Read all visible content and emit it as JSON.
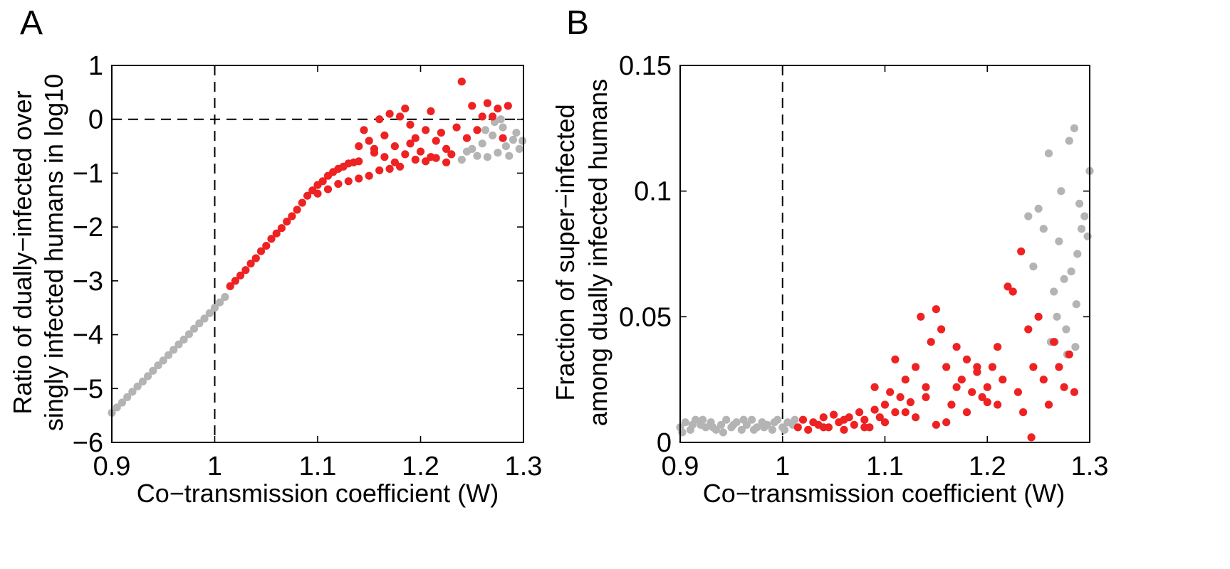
{
  "colors": {
    "red": "#ee2222",
    "gray": "#b4b4b4",
    "axis": "#000000"
  },
  "chart_data": [
    {
      "type": "scatter",
      "panel_label": "A",
      "xlabel": "Co−transmission coefficient (W)",
      "ylabel_line1": "Ratio of dually−infected over",
      "ylabel_line2": "singly infected humans in log10",
      "xlim": [
        0.9,
        1.3
      ],
      "ylim": [
        -6,
        1
      ],
      "xticks": [
        0.9,
        1.0,
        1.1,
        1.2,
        1.3
      ],
      "xtick_labels": [
        "0.9",
        "1",
        "1.1",
        "1.2",
        "1.3"
      ],
      "yticks": [
        1,
        0,
        -1,
        -2,
        -3,
        -4,
        -5,
        -6
      ],
      "ytick_labels": [
        "1",
        "0",
        "−1",
        "−2",
        "−3",
        "−4",
        "−5",
        "−6"
      ],
      "reference_lines": {
        "vertical_x": 1.0,
        "horizontal_y": 0
      },
      "series": [
        {
          "color_key": "gray",
          "points": [
            [
              0.9,
              -5.45
            ],
            [
              0.905,
              -5.35
            ],
            [
              0.91,
              -5.26
            ],
            [
              0.915,
              -5.16
            ],
            [
              0.92,
              -5.06
            ],
            [
              0.925,
              -4.96
            ],
            [
              0.93,
              -4.87
            ],
            [
              0.935,
              -4.77
            ],
            [
              0.94,
              -4.67
            ],
            [
              0.945,
              -4.57
            ],
            [
              0.95,
              -4.48
            ],
            [
              0.955,
              -4.38
            ],
            [
              0.96,
              -4.28
            ],
            [
              0.965,
              -4.18
            ],
            [
              0.97,
              -4.09
            ],
            [
              0.975,
              -3.99
            ],
            [
              0.98,
              -3.89
            ],
            [
              0.985,
              -3.79
            ],
            [
              0.99,
              -3.7
            ],
            [
              0.995,
              -3.6
            ],
            [
              1.0,
              -3.5
            ],
            [
              1.005,
              -3.4
            ],
            [
              1.01,
              -3.3
            ],
            [
              1.24,
              -0.75
            ],
            [
              1.245,
              -0.6
            ],
            [
              1.25,
              -0.55
            ],
            [
              1.255,
              -0.68
            ],
            [
              1.26,
              -0.45
            ],
            [
              1.265,
              -0.7
            ],
            [
              1.27,
              -0.3
            ],
            [
              1.275,
              -0.62
            ],
            [
              1.28,
              -0.15
            ],
            [
              1.283,
              -0.5
            ],
            [
              1.286,
              -0.68
            ],
            [
              1.29,
              -0.38
            ],
            [
              1.293,
              -0.25
            ],
            [
              1.296,
              -0.55
            ],
            [
              1.299,
              -0.4
            ],
            [
              1.272,
              -0.05
            ],
            [
              1.278,
              0.0
            ],
            [
              1.263,
              -0.2
            ]
          ]
        },
        {
          "color_key": "red",
          "points": [
            [
              1.015,
              -3.1
            ],
            [
              1.02,
              -3.0
            ],
            [
              1.025,
              -2.9
            ],
            [
              1.03,
              -2.8
            ],
            [
              1.035,
              -2.68
            ],
            [
              1.04,
              -2.58
            ],
            [
              1.045,
              -2.45
            ],
            [
              1.05,
              -2.35
            ],
            [
              1.055,
              -2.22
            ],
            [
              1.06,
              -2.12
            ],
            [
              1.065,
              -2.02
            ],
            [
              1.07,
              -1.9
            ],
            [
              1.075,
              -1.8
            ],
            [
              1.08,
              -1.68
            ],
            [
              1.085,
              -1.55
            ],
            [
              1.09,
              -1.42
            ],
            [
              1.095,
              -1.32
            ],
            [
              1.1,
              -1.22
            ],
            [
              1.105,
              -1.15
            ],
            [
              1.11,
              -1.05
            ],
            [
              1.115,
              -0.98
            ],
            [
              1.12,
              -0.92
            ],
            [
              1.125,
              -0.88
            ],
            [
              1.13,
              -0.82
            ],
            [
              1.135,
              -0.8
            ],
            [
              1.14,
              -0.78
            ],
            [
              1.1,
              -1.38
            ],
            [
              1.11,
              -1.3
            ],
            [
              1.12,
              -1.2
            ],
            [
              1.13,
              -1.15
            ],
            [
              1.14,
              -1.1
            ],
            [
              1.15,
              -1.05
            ],
            [
              1.16,
              -0.95
            ],
            [
              1.17,
              -0.92
            ],
            [
              1.18,
              -0.88
            ],
            [
              1.145,
              -0.2
            ],
            [
              1.15,
              -0.4
            ],
            [
              1.155,
              -0.55
            ],
            [
              1.16,
              0.0
            ],
            [
              1.165,
              -0.3
            ],
            [
              1.17,
              0.1
            ],
            [
              1.175,
              -0.5
            ],
            [
              1.18,
              0.05
            ],
            [
              1.185,
              0.2
            ],
            [
              1.19,
              -0.1
            ],
            [
              1.195,
              -0.35
            ],
            [
              1.2,
              -0.6
            ],
            [
              1.205,
              -0.2
            ],
            [
              1.21,
              -0.7
            ],
            [
              1.215,
              -0.4
            ],
            [
              1.22,
              -0.25
            ],
            [
              1.225,
              -0.55
            ],
            [
              1.23,
              -0.65
            ],
            [
              1.235,
              -0.15
            ],
            [
              1.24,
              0.7
            ],
            [
              1.245,
              -0.35
            ],
            [
              1.25,
              0.25
            ],
            [
              1.255,
              -0.2
            ],
            [
              1.26,
              0.05
            ],
            [
              1.265,
              0.3
            ],
            [
              1.27,
              0.05
            ],
            [
              1.275,
              0.2
            ],
            [
              1.28,
              -0.35
            ],
            [
              1.285,
              0.25
            ],
            [
              1.165,
              -0.7
            ],
            [
              1.175,
              -0.8
            ],
            [
              1.185,
              -0.65
            ],
            [
              1.195,
              -0.75
            ],
            [
              1.205,
              -0.78
            ],
            [
              1.215,
              -0.72
            ],
            [
              1.225,
              -0.8
            ],
            [
              1.155,
              -0.62
            ],
            [
              1.14,
              -0.5
            ],
            [
              1.21,
              0.15
            ],
            [
              1.19,
              -0.45
            ]
          ]
        }
      ]
    },
    {
      "type": "scatter",
      "panel_label": "B",
      "xlabel": "Co−transmission coefficient (W)",
      "ylabel_line1": "Fraction of super−infected",
      "ylabel_line2": "among dually infected humans",
      "xlim": [
        0.9,
        1.3
      ],
      "ylim": [
        0,
        0.15
      ],
      "xticks": [
        0.9,
        1.0,
        1.1,
        1.2,
        1.3
      ],
      "xtick_labels": [
        "0.9",
        "1",
        "1.1",
        "1.2",
        "1.3"
      ],
      "yticks": [
        0,
        0.05,
        0.1,
        0.15
      ],
      "ytick_labels": [
        "0",
        "0.05",
        "0.1",
        "0.15"
      ],
      "reference_lines": {
        "vertical_x": 1.0
      },
      "series": [
        {
          "color_key": "gray",
          "points": [
            [
              0.9,
              0.006
            ],
            [
              0.905,
              0.008
            ],
            [
              0.91,
              0.005
            ],
            [
              0.915,
              0.009
            ],
            [
              0.92,
              0.007
            ],
            [
              0.925,
              0.006
            ],
            [
              0.93,
              0.008
            ],
            [
              0.935,
              0.005
            ],
            [
              0.94,
              0.007
            ],
            [
              0.945,
              0.009
            ],
            [
              0.95,
              0.006
            ],
            [
              0.955,
              0.008
            ],
            [
              0.96,
              0.005
            ],
            [
              0.965,
              0.007
            ],
            [
              0.97,
              0.009
            ],
            [
              0.975,
              0.006
            ],
            [
              0.98,
              0.008
            ],
            [
              0.985,
              0.007
            ],
            [
              0.99,
              0.005
            ],
            [
              0.995,
              0.009
            ],
            [
              1.0,
              0.006
            ],
            [
              1.005,
              0.008
            ],
            [
              1.01,
              0.007
            ],
            [
              0.902,
              0.004
            ],
            [
              0.912,
              0.007
            ],
            [
              0.922,
              0.009
            ],
            [
              0.932,
              0.006
            ],
            [
              0.942,
              0.004
            ],
            [
              0.952,
              0.007
            ],
            [
              0.962,
              0.009
            ],
            [
              0.972,
              0.005
            ],
            [
              0.982,
              0.006
            ],
            [
              0.992,
              0.008
            ],
            [
              1.002,
              0.005
            ],
            [
              1.012,
              0.009
            ],
            [
              1.24,
              0.09
            ],
            [
              1.245,
              0.07
            ],
            [
              1.25,
              0.093
            ],
            [
              1.255,
              0.085
            ],
            [
              1.26,
              0.115
            ],
            [
              1.262,
              0.04
            ],
            [
              1.265,
              0.06
            ],
            [
              1.268,
              0.05
            ],
            [
              1.27,
              0.08
            ],
            [
              1.272,
              0.1
            ],
            [
              1.275,
              0.065
            ],
            [
              1.277,
              0.045
            ],
            [
              1.28,
              0.12
            ],
            [
              1.282,
              0.068
            ],
            [
              1.285,
              0.125
            ],
            [
              1.287,
              0.055
            ],
            [
              1.29,
              0.095
            ],
            [
              1.292,
              0.085
            ],
            [
              1.295,
              0.09
            ],
            [
              1.298,
              0.082
            ],
            [
              1.3,
              0.108
            ],
            [
              1.288,
              0.075
            ],
            [
              1.278,
              0.035
            ],
            [
              1.266,
              0.04
            ],
            [
              1.286,
              0.038
            ]
          ]
        },
        {
          "color_key": "red",
          "points": [
            [
              1.015,
              0.006
            ],
            [
              1.02,
              0.009
            ],
            [
              1.025,
              0.005
            ],
            [
              1.03,
              0.008
            ],
            [
              1.035,
              0.007
            ],
            [
              1.04,
              0.01
            ],
            [
              1.045,
              0.006
            ],
            [
              1.05,
              0.011
            ],
            [
              1.055,
              0.008
            ],
            [
              1.06,
              0.005
            ],
            [
              1.065,
              0.01
            ],
            [
              1.07,
              0.007
            ],
            [
              1.075,
              0.012
            ],
            [
              1.08,
              0.009
            ],
            [
              1.085,
              0.006
            ],
            [
              1.09,
              0.013
            ],
            [
              1.095,
              0.01
            ],
            [
              1.1,
              0.015
            ],
            [
              1.105,
              0.02
            ],
            [
              1.11,
              0.012
            ],
            [
              1.115,
              0.018
            ],
            [
              1.12,
              0.025
            ],
            [
              1.125,
              0.016
            ],
            [
              1.13,
              0.03
            ],
            [
              1.135,
              0.05
            ],
            [
              1.14,
              0.022
            ],
            [
              1.145,
              0.04
            ],
            [
              1.15,
              0.053
            ],
            [
              1.155,
              0.045
            ],
            [
              1.16,
              0.03
            ],
            [
              1.165,
              0.015
            ],
            [
              1.17,
              0.038
            ],
            [
              1.175,
              0.025
            ],
            [
              1.18,
              0.033
            ],
            [
              1.185,
              0.02
            ],
            [
              1.19,
              0.028
            ],
            [
              1.195,
              0.018
            ],
            [
              1.2,
              0.022
            ],
            [
              1.205,
              0.03
            ],
            [
              1.21,
              0.015
            ],
            [
              1.215,
              0.025
            ],
            [
              1.22,
              0.062
            ],
            [
              1.225,
              0.06
            ],
            [
              1.23,
              0.02
            ],
            [
              1.233,
              0.076
            ],
            [
              1.235,
              0.012
            ],
            [
              1.24,
              0.045
            ],
            [
              1.243,
              0.002
            ],
            [
              1.245,
              0.03
            ],
            [
              1.25,
              0.05
            ],
            [
              1.255,
              0.025
            ],
            [
              1.26,
              0.015
            ],
            [
              1.265,
              0.04
            ],
            [
              1.27,
              0.03
            ],
            [
              1.275,
              0.022
            ],
            [
              1.28,
              0.035
            ],
            [
              1.285,
              0.02
            ],
            [
              1.04,
              0.006
            ],
            [
              1.06,
              0.009
            ],
            [
              1.08,
              0.006
            ],
            [
              1.1,
              0.008
            ],
            [
              1.12,
              0.012
            ],
            [
              1.14,
              0.018
            ],
            [
              1.16,
              0.008
            ],
            [
              1.18,
              0.012
            ],
            [
              1.2,
              0.016
            ],
            [
              1.13,
              0.01
            ],
            [
              1.15,
              0.007
            ],
            [
              1.17,
              0.022
            ],
            [
              1.19,
              0.03
            ],
            [
              1.21,
              0.038
            ],
            [
              1.11,
              0.033
            ],
            [
              1.09,
              0.022
            ]
          ]
        }
      ]
    }
  ]
}
